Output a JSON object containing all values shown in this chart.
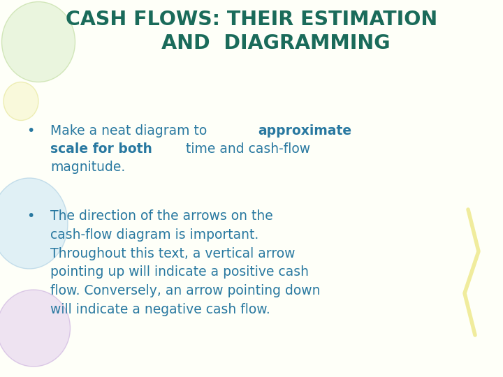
{
  "title_color": "#1a6b5a",
  "body_color": "#2878a0",
  "background_color": "#fefff8",
  "title_line1": "CASH FLOWS: THEIR ESTIMATION",
  "title_line2": "AND  DIAGRAMMING",
  "bullet1_parts": [
    {
      "text": "Make a neat diagram to ",
      "bold": false
    },
    {
      "text": "approximate",
      "bold": true
    },
    {
      "text": "\n",
      "bold": false
    },
    {
      "text": "scale for both",
      "bold": true
    },
    {
      "text": " time and cash-flow\nmagnitude.",
      "bold": false
    }
  ],
  "bullet2_text": "The direction of the arrows on the\ncash-flow diagram is important.\nThroughout this text, a vertical arrow\npointing up will indicate a positive cash\nflow. Conversely, an arrow pointing down\nwill indicate a negative cash flow.",
  "figsize": [
    7.2,
    5.4
  ],
  "dpi": 100
}
